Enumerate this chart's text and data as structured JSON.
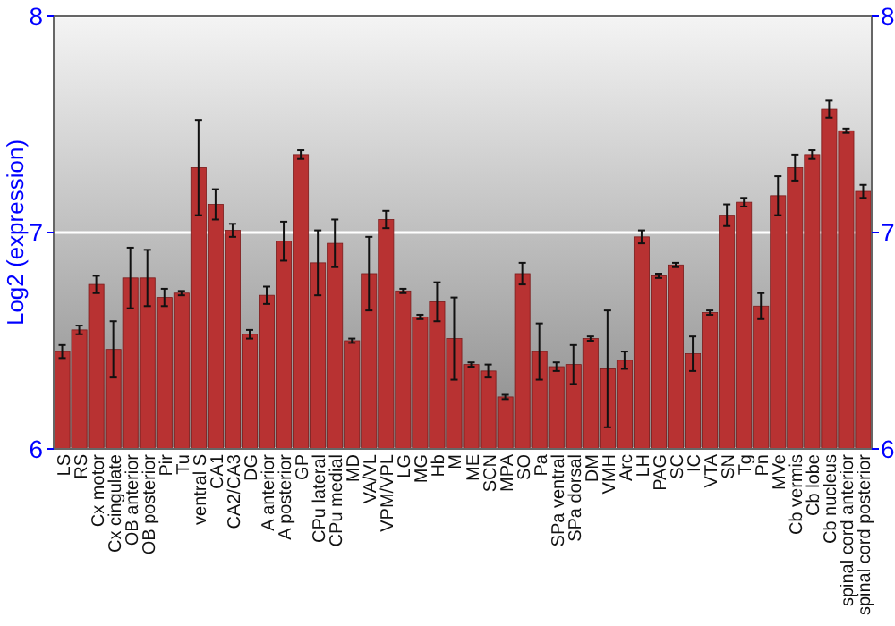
{
  "chart_data": {
    "type": "bar",
    "ylabel": "Log2 (expression)",
    "categories": [
      "LS",
      "RS",
      "Cx motor",
      "Cx cingulate",
      "OB anterior",
      "OB posterior",
      "Pir",
      "Tu",
      "ventral S",
      "CA1",
      "CA2/CA3",
      "DG",
      "A anterior",
      "A posterior",
      "GP",
      "CPu lateral",
      "CPu medial",
      "MD",
      "VA/VL",
      "VPM/VPL",
      "LG",
      "MG",
      "Hb",
      "M",
      "ME",
      "SCN",
      "MPA",
      "SO",
      "Pa",
      "SPa ventral",
      "SPa dorsal",
      "DM",
      "VMH",
      "Arc",
      "LH",
      "PAG",
      "SC",
      "IC",
      "VTA",
      "SN",
      "Tg",
      "Pn",
      "MVe",
      "Cb vermis",
      "Cb lobe",
      "Cb nucleus",
      "spinal cord anterior",
      "spinal cord posterior"
    ],
    "values": [
      6.45,
      6.55,
      6.76,
      6.46,
      6.79,
      6.79,
      6.7,
      6.72,
      7.3,
      7.13,
      7.01,
      6.53,
      6.71,
      6.96,
      7.36,
      6.86,
      6.95,
      6.5,
      6.81,
      7.06,
      6.73,
      6.61,
      6.68,
      6.51,
      6.39,
      6.36,
      6.24,
      6.81,
      6.45,
      6.38,
      6.39,
      6.51,
      6.37,
      6.41,
      6.98,
      6.8,
      6.85,
      6.44,
      6.63,
      7.08,
      7.14,
      6.66,
      7.17,
      7.3,
      7.36,
      7.57,
      7.47,
      7.19
    ],
    "errors": [
      0.03,
      0.02,
      0.04,
      0.13,
      0.14,
      0.13,
      0.04,
      0.01,
      0.22,
      0.07,
      0.03,
      0.02,
      0.04,
      0.09,
      0.02,
      0.15,
      0.11,
      0.01,
      0.17,
      0.04,
      0.01,
      0.01,
      0.09,
      0.19,
      0.01,
      0.03,
      0.01,
      0.05,
      0.13,
      0.02,
      0.09,
      0.01,
      0.27,
      0.04,
      0.03,
      0.01,
      0.01,
      0.08,
      0.01,
      0.05,
      0.02,
      0.06,
      0.09,
      0.06,
      0.02,
      0.04,
      0.01,
      0.03
    ],
    "color": "#b83232",
    "ylim": [
      6,
      8
    ],
    "yticks": [
      6,
      7,
      8
    ],
    "y2lim": [
      6,
      8
    ],
    "y2ticks": [
      6,
      7,
      8
    ],
    "grid": "y"
  }
}
